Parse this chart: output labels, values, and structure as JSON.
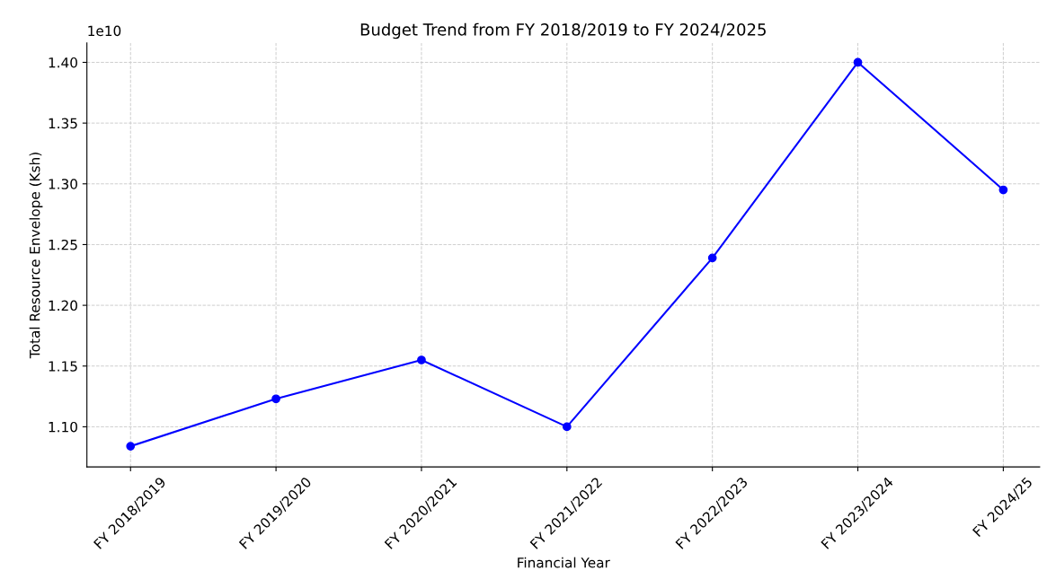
{
  "chart_data": {
    "type": "line",
    "title": "Budget Trend from FY 2018/2019 to FY 2024/2025",
    "xlabel": "Financial Year",
    "ylabel": "Total Resource Envelope (Ksh)",
    "categories": [
      "FY 2018/2019",
      "FY 2019/2020",
      "FY 2020/2021",
      "FY 2021/2022",
      "FY 2022/2023",
      "FY 2023/2024",
      "FY 2024/25"
    ],
    "series": [
      {
        "color": "#0000ff",
        "values": [
          1.084,
          1.123,
          1.155,
          1.1,
          1.239,
          1.4,
          1.295
        ]
      }
    ],
    "ylim": [
      1.067,
      1.416
    ],
    "yticks": [
      {
        "value": 1.1,
        "label": "1.10"
      },
      {
        "value": 1.15,
        "label": "1.15"
      },
      {
        "value": 1.2,
        "label": "1.20"
      },
      {
        "value": 1.25,
        "label": "1.25"
      },
      {
        "value": 1.3,
        "label": "1.30"
      },
      {
        "value": 1.35,
        "label": "1.35"
      },
      {
        "value": 1.4,
        "label": "1.40"
      }
    ],
    "annotations": [
      "1e10"
    ],
    "grid": true,
    "marker": "circle",
    "line_style": "solid",
    "legend": false
  }
}
